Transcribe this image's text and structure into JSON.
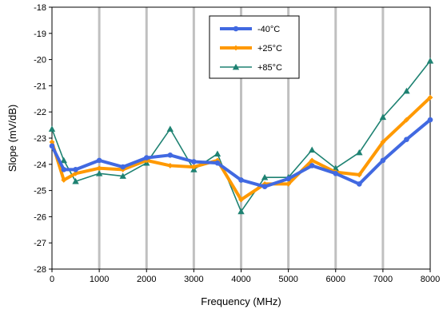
{
  "chart_data": {
    "type": "line",
    "title": "",
    "xlabel": "Frequency (MHz)",
    "ylabel": "Slope (mV/dB)",
    "xlim": [
      0,
      8000
    ],
    "ylim": [
      -28,
      -18
    ],
    "xticks": [
      0,
      1000,
      2000,
      3000,
      4000,
      5000,
      6000,
      7000,
      8000
    ],
    "yticks": [
      -18,
      -19,
      -20,
      -21,
      -22,
      -23,
      -24,
      -25,
      -26,
      -27,
      -28
    ],
    "grid": "vertical",
    "legend_position": "top-center",
    "x": [
      0,
      250,
      500,
      1000,
      1500,
      2000,
      2500,
      3000,
      3500,
      4000,
      4500,
      5000,
      5500,
      6000,
      6500,
      7000,
      7500,
      8000
    ],
    "series": [
      {
        "name": "-40°C",
        "color": "#4169E1",
        "marker": "circle",
        "values": [
          -23.3,
          -24.2,
          -24.2,
          -23.85,
          -24.1,
          -23.75,
          -23.65,
          -23.9,
          -23.95,
          -24.6,
          -24.85,
          -24.55,
          -24.05,
          -24.35,
          -24.75,
          -23.85,
          -23.05,
          -22.3
        ]
      },
      {
        "name": "+25°C",
        "color": "#FF9900",
        "marker": "diamond",
        "values": [
          -23.15,
          -24.6,
          -24.35,
          -24.15,
          -24.2,
          -23.85,
          -24.05,
          -24.1,
          -23.85,
          -25.35,
          -24.75,
          -24.75,
          -23.85,
          -24.3,
          -24.4,
          -23.15,
          -22.3,
          -21.45
        ]
      },
      {
        "name": "+85°C",
        "color": "#1E8272",
        "marker": "triangle",
        "values": [
          -22.65,
          -23.85,
          -24.65,
          -24.35,
          -24.45,
          -23.95,
          -22.65,
          -24.2,
          -23.6,
          -25.8,
          -24.5,
          -24.5,
          -23.45,
          -24.15,
          -23.55,
          -22.2,
          -21.2,
          -20.05
        ]
      }
    ]
  }
}
